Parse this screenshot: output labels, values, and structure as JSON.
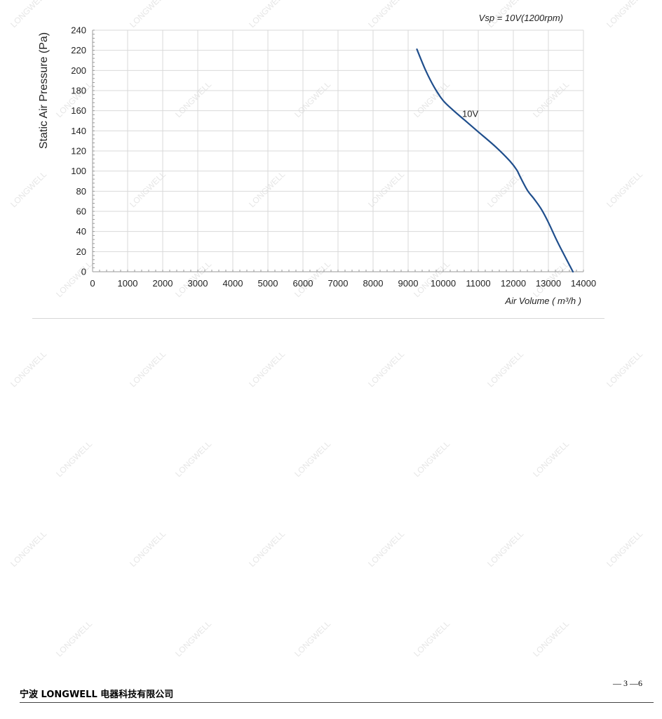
{
  "chart_data": {
    "type": "line",
    "title": "",
    "annotation": "Vsp = 10V(1200rpm)",
    "xlabel": "Air Volume ( m³/h )",
    "ylabel": "Static Air Pressure  (Pa)",
    "xlim": [
      0,
      14000
    ],
    "ylim": [
      0,
      240
    ],
    "x_ticks": [
      0,
      1000,
      2000,
      3000,
      4000,
      5000,
      6000,
      7000,
      8000,
      9000,
      10000,
      11000,
      12000,
      13000,
      14000
    ],
    "y_ticks": [
      0,
      20,
      40,
      60,
      80,
      100,
      120,
      140,
      160,
      180,
      200,
      220,
      240
    ],
    "grid": true,
    "series": [
      {
        "name": "10V",
        "color": "#1f4e8c",
        "x": [
          9250,
          9500,
          9750,
          10000,
          10300,
          10600,
          11000,
          11500,
          11900,
          12100,
          12200,
          12400,
          12600,
          12800,
          13000,
          13200,
          13400,
          13700
        ],
        "y": [
          221,
          200,
          183,
          170,
          160,
          151,
          139,
          124,
          110,
          101,
          94,
          81,
          72,
          62,
          49,
          34,
          20,
          0
        ]
      }
    ]
  },
  "footer": {
    "company": "宁波 LONGWELL 电器科技有限公司",
    "page": "— 3 —6"
  },
  "watermark_text": "LONGWELL",
  "colors": {
    "line": "#1f4e8c",
    "grid": "#d9d9d9",
    "axis": "#999999",
    "watermark": "#e6e6e6"
  }
}
